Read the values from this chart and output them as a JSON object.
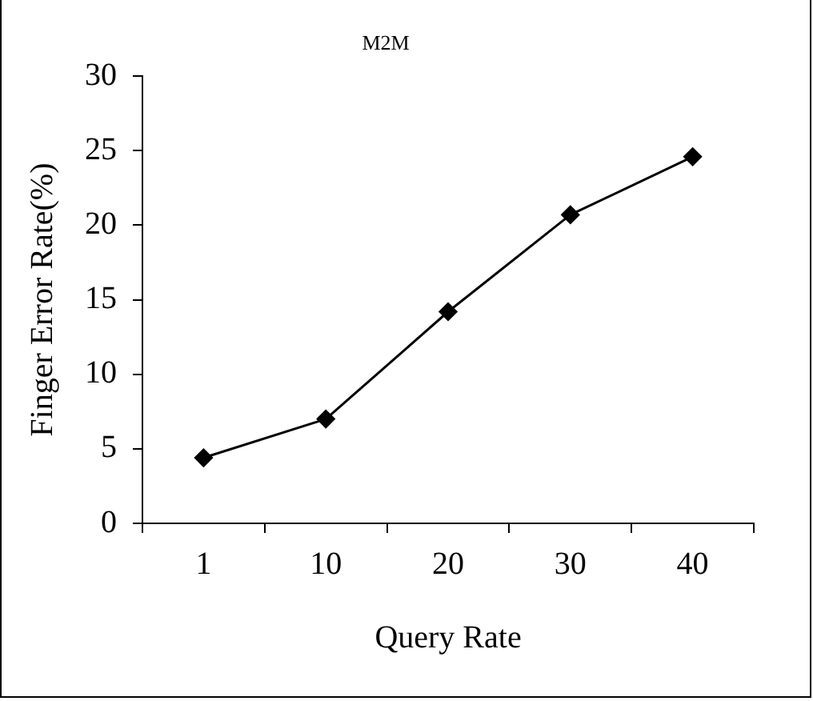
{
  "chart_data": {
    "type": "line",
    "title": "M2M",
    "xlabel": "Query Rate",
    "ylabel": "Finger Error Rate(%)",
    "categories": [
      "1",
      "10",
      "20",
      "30",
      "40"
    ],
    "series": [
      {
        "color": "#000000",
        "values": [
          4.4,
          7.0,
          14.2,
          20.7,
          24.6
        ]
      }
    ],
    "ylim": [
      0,
      30
    ],
    "yticks": [
      0,
      5,
      10,
      15,
      20,
      25,
      30
    ],
    "grid": false,
    "legend": false,
    "marker": "diamond",
    "line_style": "solid"
  }
}
